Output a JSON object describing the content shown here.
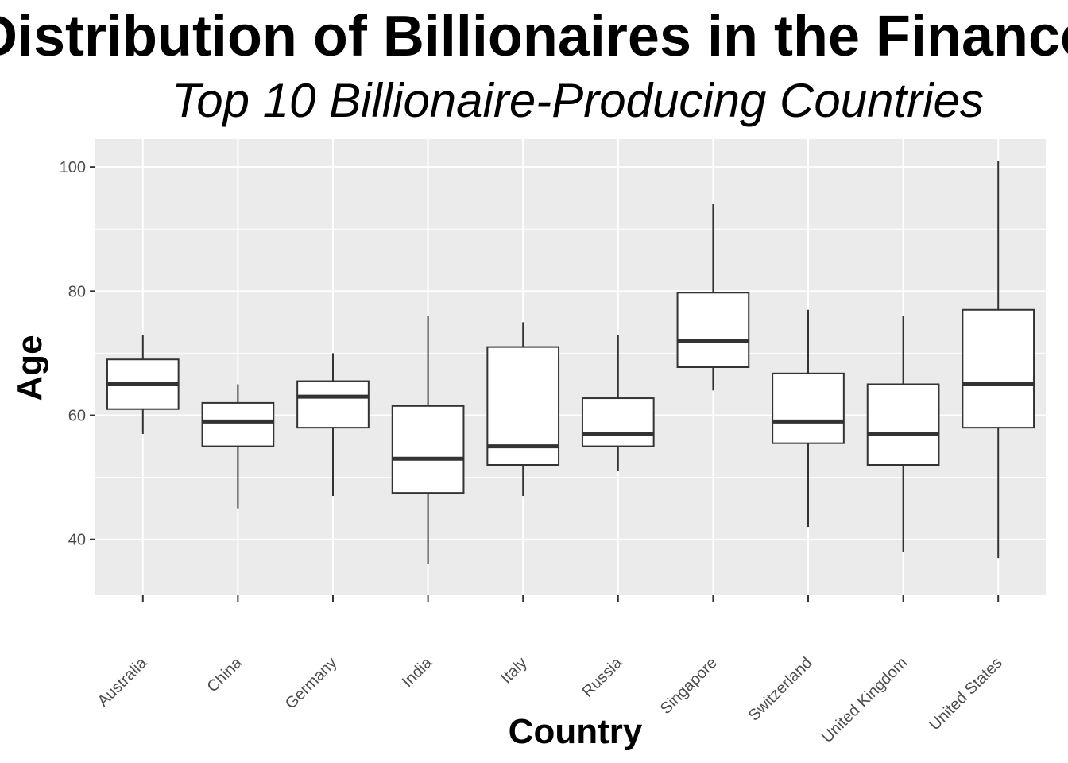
{
  "chart_data": {
    "type": "boxplot",
    "title": "Distribution of Billionaires in the Finance",
    "subtitle": "Top 10 Billionaire-Producing Countries",
    "xlabel": "Country",
    "ylabel": "Age",
    "ylim": [
      31,
      104.5
    ],
    "yticks": [
      40,
      60,
      80,
      100
    ],
    "grid": true,
    "categories": [
      "Australia",
      "China",
      "Germany",
      "India",
      "Italy",
      "Russia",
      "Singapore",
      "Switzerland",
      "United Kingdom",
      "United States"
    ],
    "boxes": [
      {
        "min": 57,
        "q1": 61,
        "median": 65,
        "q3": 69,
        "max": 73
      },
      {
        "min": 45,
        "q1": 55,
        "median": 59,
        "q3": 62,
        "max": 65
      },
      {
        "min": 47,
        "q1": 58,
        "median": 63,
        "q3": 65.5,
        "max": 70
      },
      {
        "min": 36,
        "q1": 47.5,
        "median": 53,
        "q3": 61.5,
        "max": 76
      },
      {
        "min": 47,
        "q1": 52,
        "median": 55,
        "q3": 71,
        "max": 75
      },
      {
        "min": 51,
        "q1": 55,
        "median": 57,
        "q3": 62.75,
        "max": 73
      },
      {
        "min": 64,
        "q1": 67.75,
        "median": 72,
        "q3": 79.75,
        "max": 94
      },
      {
        "min": 42,
        "q1": 55.5,
        "median": 59,
        "q3": 66.75,
        "max": 77
      },
      {
        "min": 38,
        "q1": 52,
        "median": 57,
        "q3": 65,
        "max": 76
      },
      {
        "min": 37,
        "q1": 58,
        "median": 65,
        "q3": 77,
        "max": 101
      }
    ],
    "colors": {
      "panel": "#ebebeb",
      "grid": "#ffffff",
      "box_fill": "#ffffff",
      "box_stroke": "#333333",
      "tick": "#333333"
    }
  }
}
